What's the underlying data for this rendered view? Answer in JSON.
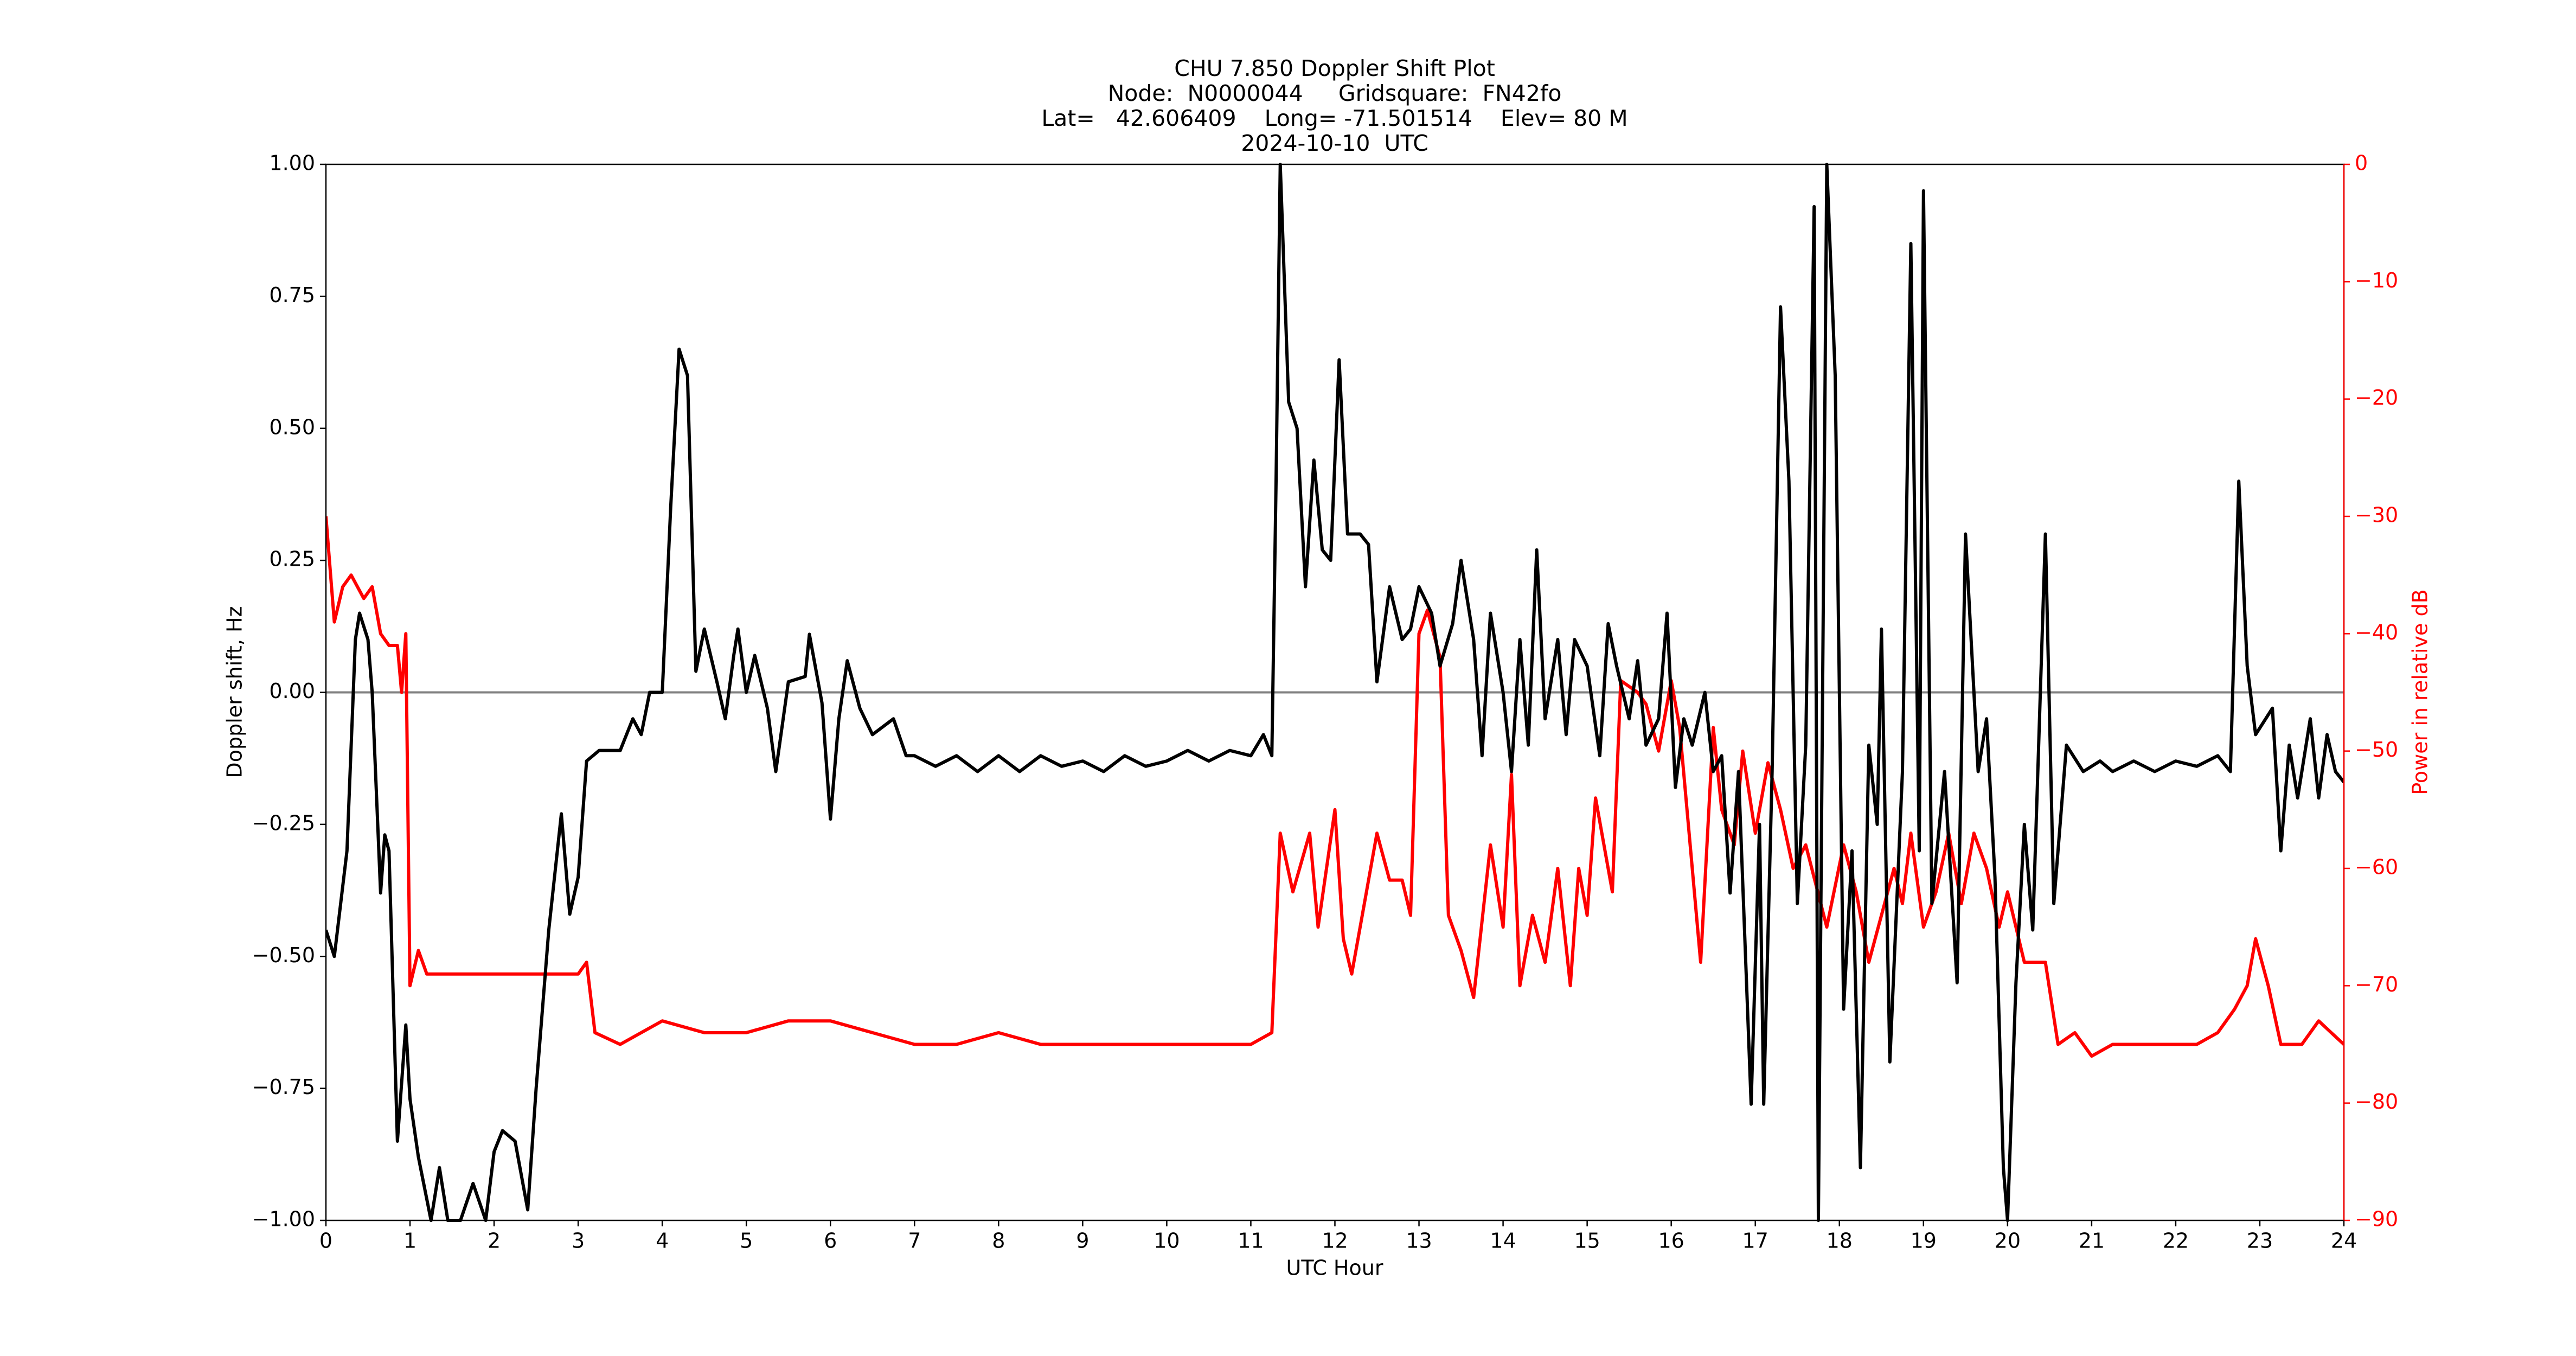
{
  "chart_data": {
    "type": "line",
    "title_lines": [
      "CHU 7.850 Doppler Shift Plot",
      "Node:  N0000044     Gridsquare:  FN42fo",
      "Lat=   42.606409    Long= -71.501514    Elev= 80 M",
      "2024-10-10  UTC"
    ],
    "x_label": "UTC Hour",
    "y_label": "Doppler shift, Hz",
    "y2_label": "Power in relative dB",
    "xlim": [
      0,
      24
    ],
    "xticks": [
      0,
      1,
      2,
      3,
      4,
      5,
      6,
      7,
      8,
      9,
      10,
      11,
      12,
      13,
      14,
      15,
      16,
      17,
      18,
      19,
      20,
      21,
      22,
      23,
      24
    ],
    "ylim": [
      -1,
      1
    ],
    "yticks": [
      {
        "value": -1,
        "label": "−1.00"
      },
      {
        "value": -0.75,
        "label": "−0.75"
      },
      {
        "value": -0.5,
        "label": "−0.50"
      },
      {
        "value": -0.25,
        "label": "−0.25"
      },
      {
        "value": 0,
        "label": "0.00"
      },
      {
        "value": 0.25,
        "label": "0.25"
      },
      {
        "value": 0.5,
        "label": "0.50"
      },
      {
        "value": 0.75,
        "label": "0.75"
      },
      {
        "value": 1,
        "label": "1.00"
      }
    ],
    "y2lim": [
      -90,
      0
    ],
    "y2ticks": [
      {
        "value": -90,
        "label": "−90"
      },
      {
        "value": -80,
        "label": "−80"
      },
      {
        "value": -70,
        "label": "−70"
      },
      {
        "value": -60,
        "label": "−60"
      },
      {
        "value": -50,
        "label": "−50"
      },
      {
        "value": -40,
        "label": "−40"
      },
      {
        "value": -30,
        "label": "−30"
      },
      {
        "value": -20,
        "label": "−20"
      },
      {
        "value": -10,
        "label": "−10"
      },
      0
    ],
    "y2_color": "#ff0000",
    "hline": 0,
    "hline_color": "#808080",
    "series": [
      {
        "name": "Doppler shift",
        "color": "#000000",
        "axis": "y",
        "x": [
          0,
          0.1,
          0.25,
          0.35,
          0.4,
          0.5,
          0.55,
          0.65,
          0.7,
          0.75,
          0.85,
          0.95,
          1.0,
          1.1,
          1.25,
          1.35,
          1.45,
          1.6,
          1.75,
          1.9,
          2.0,
          2.1,
          2.25,
          2.4,
          2.5,
          2.65,
          2.8,
          2.9,
          3.0,
          3.1,
          3.25,
          3.5,
          3.65,
          3.75,
          3.85,
          4.0,
          4.1,
          4.2,
          4.3,
          4.4,
          4.5,
          4.65,
          4.75,
          4.85,
          4.9,
          5.0,
          5.1,
          5.25,
          5.35,
          5.5,
          5.7,
          5.75,
          5.9,
          6.0,
          6.1,
          6.2,
          6.35,
          6.5,
          6.75,
          6.9,
          7.0,
          7.25,
          7.5,
          7.75,
          8.0,
          8.25,
          8.5,
          8.75,
          9.0,
          9.25,
          9.5,
          9.75,
          10.0,
          10.25,
          10.5,
          10.75,
          11.0,
          11.15,
          11.25,
          11.3,
          11.35,
          11.45,
          11.55,
          11.65,
          11.75,
          11.85,
          11.95,
          12.05,
          12.15,
          12.3,
          12.4,
          12.5,
          12.65,
          12.8,
          12.9,
          13.0,
          13.15,
          13.25,
          13.4,
          13.5,
          13.65,
          13.75,
          13.85,
          14.0,
          14.1,
          14.2,
          14.3,
          14.4,
          14.5,
          14.65,
          14.75,
          14.85,
          15.0,
          15.15,
          15.25,
          15.35,
          15.5,
          15.6,
          15.7,
          15.85,
          15.95,
          16.05,
          16.15,
          16.25,
          16.4,
          16.5,
          16.6,
          16.7,
          16.8,
          16.95,
          17.05,
          17.1,
          17.2,
          17.3,
          17.4,
          17.5,
          17.6,
          17.7,
          17.75,
          17.85,
          17.95,
          18.05,
          18.15,
          18.25,
          18.35,
          18.45,
          18.5,
          18.6,
          18.75,
          18.85,
          18.95,
          19.0,
          19.1,
          19.25,
          19.4,
          19.5,
          19.65,
          19.75,
          19.85,
          19.95,
          20.0,
          20.1,
          20.2,
          20.3,
          20.45,
          20.55,
          20.7,
          20.9,
          21.1,
          21.25,
          21.5,
          21.75,
          22.0,
          22.25,
          22.5,
          22.65,
          22.75,
          22.85,
          22.95,
          23.15,
          23.25,
          23.35,
          23.45,
          23.6,
          23.7,
          23.8,
          23.9,
          24.0
        ],
        "values": [
          -0.45,
          -0.5,
          -0.3,
          0.1,
          0.15,
          0.1,
          0.0,
          -0.38,
          -0.27,
          -0.3,
          -0.85,
          -0.63,
          -0.77,
          -0.88,
          -1.0,
          -0.9,
          -1.0,
          -1.0,
          -0.93,
          -1.0,
          -0.87,
          -0.83,
          -0.85,
          -0.98,
          -0.75,
          -0.45,
          -0.23,
          -0.42,
          -0.35,
          -0.13,
          -0.11,
          -0.11,
          -0.05,
          -0.08,
          0.0,
          0.0,
          0.35,
          0.65,
          0.6,
          0.04,
          0.12,
          0.02,
          -0.05,
          0.07,
          0.12,
          0.0,
          0.07,
          -0.03,
          -0.15,
          0.02,
          0.03,
          0.11,
          -0.02,
          -0.24,
          -0.05,
          0.06,
          -0.03,
          -0.08,
          -0.05,
          -0.12,
          -0.12,
          -0.14,
          -0.12,
          -0.15,
          -0.12,
          -0.15,
          -0.12,
          -0.14,
          -0.13,
          -0.15,
          -0.12,
          -0.14,
          -0.13,
          -0.11,
          -0.13,
          -0.11,
          -0.12,
          -0.08,
          -0.12,
          0.4,
          1.0,
          0.55,
          0.5,
          0.2,
          0.44,
          0.27,
          0.25,
          0.63,
          0.3,
          0.3,
          0.28,
          0.02,
          0.2,
          0.1,
          0.12,
          0.2,
          0.15,
          0.05,
          0.13,
          0.25,
          0.1,
          -0.12,
          0.15,
          0.0,
          -0.15,
          0.1,
          -0.1,
          0.27,
          -0.05,
          0.1,
          -0.08,
          0.1,
          0.05,
          -0.12,
          0.13,
          0.05,
          -0.05,
          0.06,
          -0.1,
          -0.05,
          0.15,
          -0.18,
          -0.05,
          -0.1,
          0.0,
          -0.15,
          -0.12,
          -0.38,
          -0.15,
          -0.78,
          -0.25,
          -0.78,
          -0.15,
          0.73,
          0.4,
          -0.4,
          -0.1,
          0.92,
          -1.0,
          1.0,
          0.6,
          -0.6,
          -0.3,
          -0.9,
          -0.1,
          -0.25,
          0.12,
          -0.7,
          -0.15,
          0.85,
          -0.3,
          0.95,
          -0.4,
          -0.15,
          -0.55,
          0.3,
          -0.15,
          -0.05,
          -0.35,
          -0.9,
          -1.0,
          -0.55,
          -0.25,
          -0.45,
          0.3,
          -0.4,
          -0.1,
          -0.15,
          -0.13,
          -0.15,
          -0.13,
          -0.15,
          -0.13,
          -0.14,
          -0.12,
          -0.15,
          0.4,
          0.05,
          -0.08,
          -0.03,
          -0.3,
          -0.1,
          -0.2,
          -0.05,
          -0.2,
          -0.08,
          -0.15,
          -0.17
        ]
      },
      {
        "name": "Power",
        "color": "#ff0000",
        "axis": "y2",
        "x": [
          0,
          0.1,
          0.2,
          0.3,
          0.45,
          0.55,
          0.65,
          0.75,
          0.85,
          0.9,
          0.95,
          1.0,
          1.1,
          1.2,
          1.5,
          2.0,
          2.5,
          3.0,
          3.1,
          3.2,
          3.5,
          4.0,
          4.5,
          5.0,
          5.5,
          6.0,
          6.5,
          7.0,
          7.5,
          8.0,
          8.5,
          9.0,
          9.5,
          10.0,
          10.5,
          11.0,
          11.25,
          11.35,
          11.5,
          11.7,
          11.8,
          12.0,
          12.1,
          12.2,
          12.35,
          12.5,
          12.65,
          12.8,
          12.9,
          13.0,
          13.1,
          13.25,
          13.35,
          13.5,
          13.65,
          13.85,
          14.0,
          14.1,
          14.2,
          14.35,
          14.5,
          14.65,
          14.8,
          14.9,
          15.0,
          15.1,
          15.3,
          15.4,
          15.6,
          15.7,
          15.85,
          16.0,
          16.1,
          16.2,
          16.35,
          16.5,
          16.6,
          16.75,
          16.85,
          17.0,
          17.15,
          17.3,
          17.45,
          17.6,
          17.85,
          18.05,
          18.2,
          18.35,
          18.5,
          18.65,
          18.75,
          18.85,
          19.0,
          19.15,
          19.3,
          19.45,
          19.6,
          19.75,
          19.9,
          20.0,
          20.2,
          20.45,
          20.6,
          20.8,
          21.0,
          21.25,
          21.5,
          21.75,
          22.0,
          22.25,
          22.5,
          22.7,
          22.85,
          22.95,
          23.1,
          23.25,
          23.5,
          23.7,
          23.85,
          24.0
        ],
        "values": [
          -30,
          -39,
          -36,
          -35,
          -37,
          -36,
          -40,
          -41,
          -41,
          -45,
          -40,
          -70,
          -67,
          -69,
          -69,
          -69,
          -69,
          -69,
          -68,
          -74,
          -75,
          -73,
          -74,
          -74,
          -73,
          -73,
          -74,
          -75,
          -75,
          -74,
          -75,
          -75,
          -75,
          -75,
          -75,
          -75,
          -74,
          -57,
          -62,
          -57,
          -65,
          -55,
          -66,
          -69,
          -63,
          -57,
          -61,
          -61,
          -64,
          -40,
          -38,
          -42,
          -64,
          -67,
          -71,
          -58,
          -65,
          -52,
          -70,
          -64,
          -68,
          -60,
          -70,
          -60,
          -64,
          -54,
          -62,
          -44,
          -45,
          -46,
          -50,
          -44,
          -48,
          -56,
          -68,
          -48,
          -55,
          -58,
          -50,
          -57,
          -51,
          -55,
          -60,
          -58,
          -65,
          -58,
          -62,
          -68,
          -64,
          -60,
          -63,
          -57,
          -65,
          -62,
          -57,
          -63,
          -57,
          -60,
          -65,
          -62,
          -68,
          -68,
          -75,
          -74,
          -76,
          -75,
          -75,
          -75,
          -75,
          -75,
          -74,
          -72,
          -70,
          -66,
          -70,
          -75,
          -75,
          -73,
          -74,
          -75
        ]
      }
    ]
  }
}
